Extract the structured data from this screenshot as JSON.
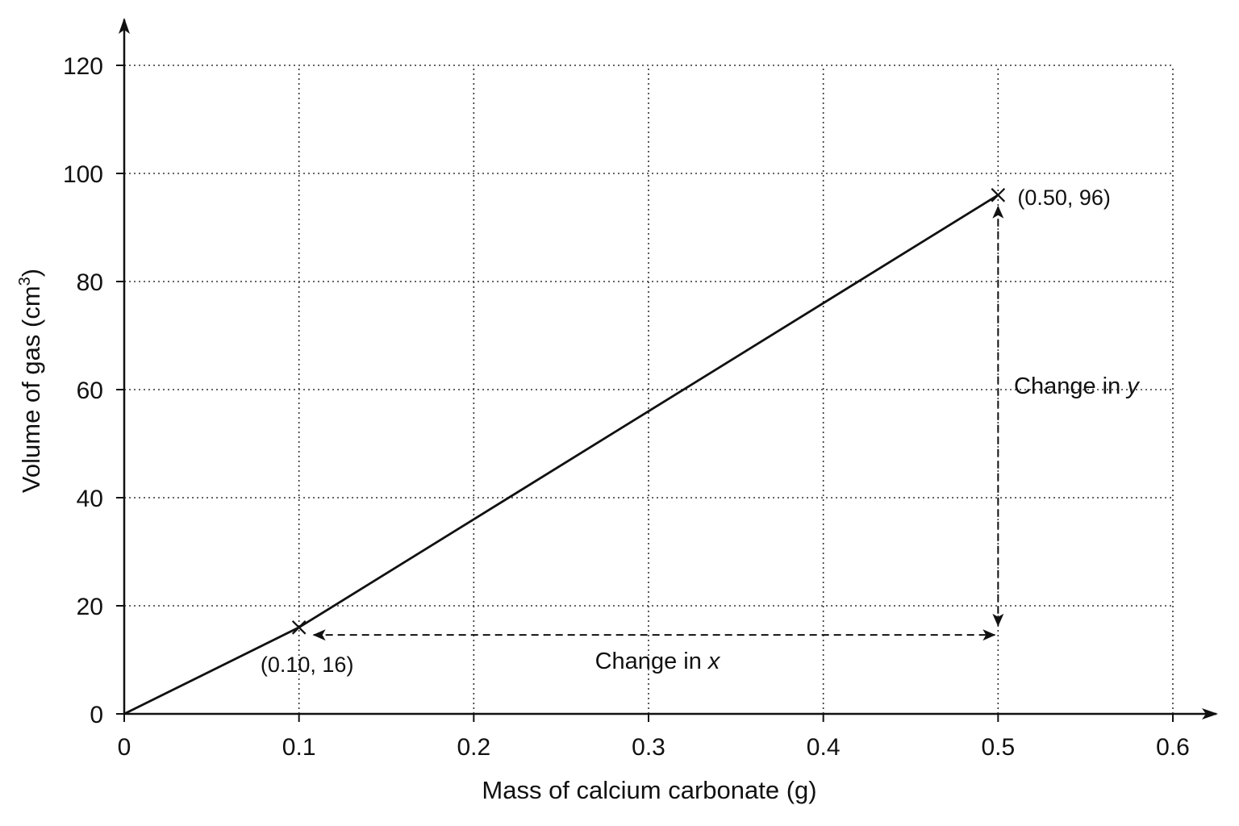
{
  "chart_data": {
    "type": "line",
    "title": "",
    "xlabel": "Mass of calcium carbonate (g)",
    "ylabel_main": "Volume of gas (cm",
    "ylabel_sup": "3",
    "ylabel_close": ")",
    "xlim": [
      0,
      0.6
    ],
    "ylim": [
      0,
      120
    ],
    "grid": true,
    "x_ticks": [
      {
        "value": 0,
        "label": "0"
      },
      {
        "value": 0.1,
        "label": "0.1"
      },
      {
        "value": 0.2,
        "label": "0.2"
      },
      {
        "value": 0.3,
        "label": "0.3"
      },
      {
        "value": 0.4,
        "label": "0.4"
      },
      {
        "value": 0.5,
        "label": "0.5"
      },
      {
        "value": 0.6,
        "label": "0.6"
      }
    ],
    "y_ticks": [
      {
        "value": 0,
        "label": "0"
      },
      {
        "value": 20,
        "label": "20"
      },
      {
        "value": 40,
        "label": "40"
      },
      {
        "value": 60,
        "label": "60"
      },
      {
        "value": 80,
        "label": "80"
      },
      {
        "value": 100,
        "label": "100"
      },
      {
        "value": 120,
        "label": "120"
      }
    ],
    "line": {
      "x": [
        0,
        0.1,
        0.5
      ],
      "y": [
        0,
        16,
        96
      ]
    },
    "points": [
      {
        "x": 0.1,
        "y": 16,
        "label": "(0.10, 16)"
      },
      {
        "x": 0.5,
        "y": 96,
        "label": "(0.50, 96)"
      }
    ],
    "annotations": {
      "change_x_text": "Change in ",
      "change_x_var": "x",
      "change_y_text": "Change in ",
      "change_y_var": "y",
      "change_x_from": [
        0.1,
        14.6
      ],
      "change_x_to": [
        0.5,
        14.6
      ],
      "change_y_from": [
        0.5,
        16
      ],
      "change_y_to": [
        0.5,
        96
      ]
    },
    "colors": {
      "line": "#111111",
      "grid": "#333333"
    }
  }
}
